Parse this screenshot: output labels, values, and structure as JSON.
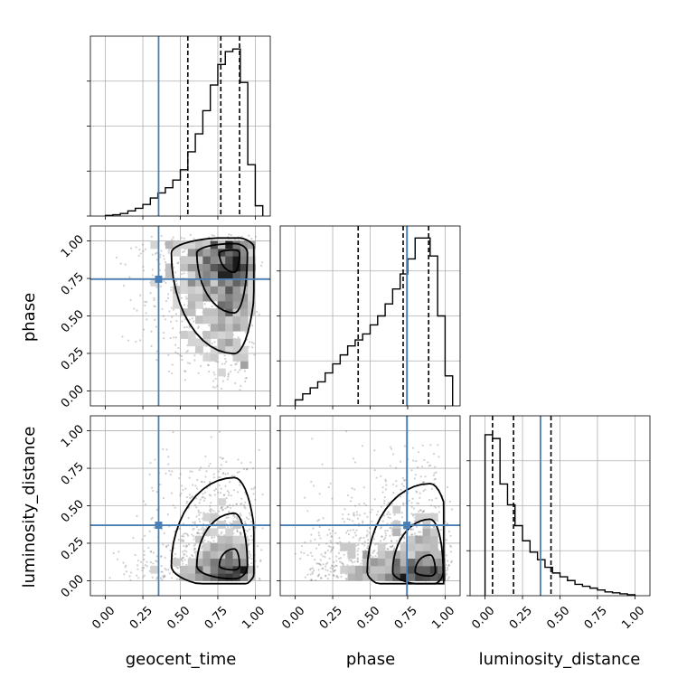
{
  "chart_data": {
    "type": "corner",
    "parameters": [
      "geocent_time",
      "phase",
      "luminosity_distance"
    ],
    "tick_labels": [
      "0.00",
      "0.25",
      "0.50",
      "0.75",
      "1.00"
    ],
    "range": [
      -0.1,
      1.1
    ],
    "grid": true,
    "colors": {
      "truth": "#4a7fb5",
      "hist": "#000000",
      "quantile": "#000000"
    },
    "truths": {
      "geocent_time": 0.355,
      "phase": 0.745,
      "luminosity_distance": 0.37
    },
    "histograms": {
      "geocent_time": {
        "bins": [
          0.0,
          0.05,
          0.1,
          0.15,
          0.2,
          0.25,
          0.3,
          0.35,
          0.4,
          0.45,
          0.5,
          0.55,
          0.6,
          0.65,
          0.7,
          0.75,
          0.8,
          0.85,
          0.9,
          0.95,
          1.0,
          1.05
        ],
        "counts": [
          0.5,
          1,
          2,
          4,
          6,
          9,
          14,
          18,
          22,
          28,
          36,
          50,
          64,
          82,
          102,
          118,
          128,
          130,
          104,
          40,
          8
        ],
        "ylim": [
          0,
          140
        ],
        "quantiles": [
          0.55,
          0.77,
          0.895
        ]
      },
      "phase": {
        "bins": [
          0.0,
          0.05,
          0.1,
          0.15,
          0.2,
          0.25,
          0.3,
          0.35,
          0.4,
          0.45,
          0.5,
          0.55,
          0.6,
          0.65,
          0.7,
          0.75,
          0.8,
          0.85,
          0.9,
          0.95,
          1.0,
          1.05
        ],
        "counts": [
          4,
          8,
          12,
          16,
          22,
          28,
          34,
          40,
          44,
          48,
          54,
          60,
          68,
          78,
          88,
          98,
          112,
          112,
          100,
          60,
          20
        ],
        "ylim": [
          0,
          120
        ],
        "quantiles": [
          0.42,
          0.72,
          0.89
        ]
      },
      "luminosity_distance": {
        "bins": [
          0.0,
          0.05,
          0.1,
          0.15,
          0.2,
          0.25,
          0.3,
          0.35,
          0.4,
          0.45,
          0.5,
          0.55,
          0.6,
          0.65,
          0.7,
          0.75,
          0.8,
          0.85,
          0.9,
          0.95,
          1.0
        ],
        "counts": [
          170,
          166,
          118,
          96,
          74,
          58,
          46,
          38,
          30,
          24,
          20,
          16,
          12,
          10,
          8,
          6,
          4,
          3,
          2,
          1
        ],
        "ylim": [
          0,
          190
        ],
        "quantiles": [
          0.05,
          0.19,
          0.44
        ]
      }
    },
    "joint_density_peaks": {
      "geocent_time_vs_phase": [
        0.86,
        0.92
      ],
      "geocent_time_vs_luminosity_distance": [
        0.86,
        0.1
      ],
      "phase_vs_luminosity_distance": [
        0.9,
        0.06
      ]
    }
  }
}
